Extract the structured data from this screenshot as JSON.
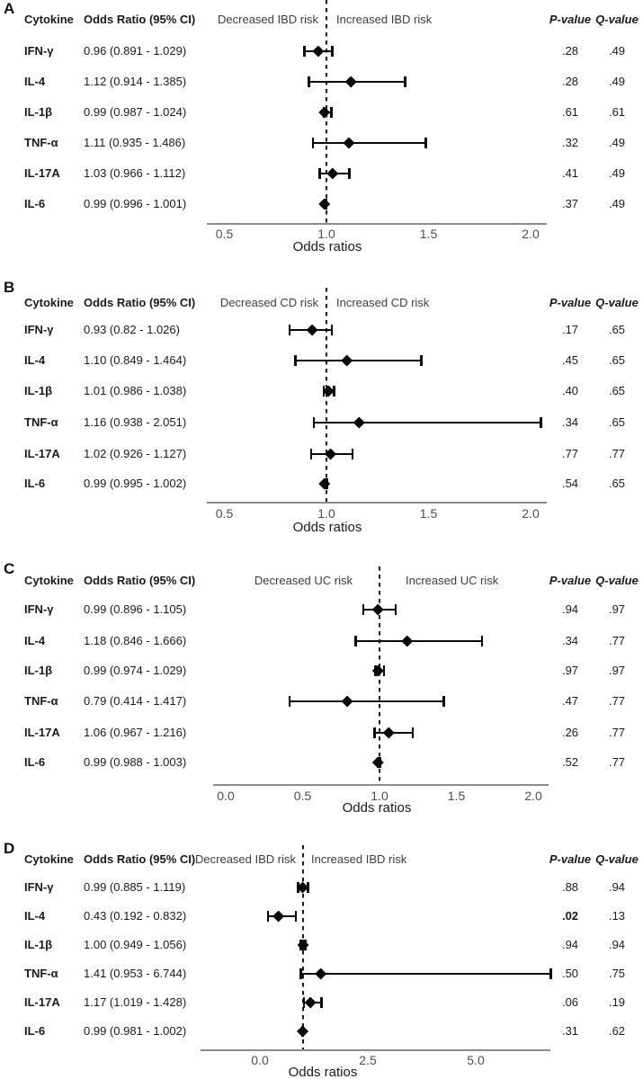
{
  "colors": {
    "text": "#1a1a1a",
    "muted_text": "#4d4d4d",
    "risk_label_text": "#3d3d3d",
    "axis_line": "#8c8c8c",
    "marker": "#0a0a0a",
    "background": "#ffffff"
  },
  "chart_data": [
    {
      "type": "scatter",
      "subtype": "forest-plot",
      "panel_label": "A",
      "col_headers": {
        "cytokine": "Cytokine",
        "or_ci": "Odds Ratio (95% CI)",
        "p": "P-value",
        "q": "Q-value"
      },
      "decreased_label": "Decreased IBD risk",
      "increased_label": "Increased IBD risk",
      "xlabel": "Odds ratios",
      "ref_line": 1.0,
      "xticks": [
        0.5,
        1.0,
        1.5,
        2.0
      ],
      "xtick_labels": [
        "0.5",
        "1.0",
        "1.5",
        "2.0"
      ],
      "xlim": [
        0.42,
        2.08
      ],
      "rows": [
        {
          "cytokine": "IFN-γ",
          "or_ci": "0.96 (0.891 - 1.029)",
          "or": 0.96,
          "lo": 0.891,
          "hi": 1.029,
          "p": ".28",
          "q": ".49",
          "p_bold": false
        },
        {
          "cytokine": "IL-4",
          "or_ci": "1.12 (0.914 - 1.385)",
          "or": 1.12,
          "lo": 0.914,
          "hi": 1.385,
          "p": ".28",
          "q": ".49",
          "p_bold": false
        },
        {
          "cytokine": "IL-1β",
          "or_ci": "0.99 (0.987 - 1.024)",
          "or": 0.99,
          "lo": 0.987,
          "hi": 1.024,
          "p": ".61",
          "q": ".61",
          "p_bold": false
        },
        {
          "cytokine": "TNF-α",
          "or_ci": "1.11 (0.935 - 1.486)",
          "or": 1.11,
          "lo": 0.935,
          "hi": 1.486,
          "p": ".32",
          "q": ".49",
          "p_bold": false
        },
        {
          "cytokine": "IL-17A",
          "or_ci": "1.03 (0.966 - 1.112)",
          "or": 1.03,
          "lo": 0.966,
          "hi": 1.112,
          "p": ".41",
          "q": ".49",
          "p_bold": false
        },
        {
          "cytokine": "IL-6",
          "or_ci": "0.99 (0.996 - 1.001)",
          "or": 0.99,
          "lo": 0.996,
          "hi": 1.001,
          "p": ".37",
          "q": ".49",
          "p_bold": false
        }
      ]
    },
    {
      "type": "scatter",
      "subtype": "forest-plot",
      "panel_label": "B",
      "col_headers": {
        "cytokine": "Cytokine",
        "or_ci": "Odds Ratio (95% CI)",
        "p": "P-value",
        "q": "Q-value"
      },
      "decreased_label": "Decreased CD risk",
      "increased_label": "Increased CD risk",
      "xlabel": "Odds ratios",
      "ref_line": 1.0,
      "xticks": [
        0.5,
        1.0,
        1.5,
        2.0
      ],
      "xtick_labels": [
        "0.5",
        "1.0",
        "1.5",
        "2.0"
      ],
      "xlim": [
        0.42,
        2.08
      ],
      "rows": [
        {
          "cytokine": "IFN-γ",
          "or_ci": "0.93 (0.82 - 1.026)",
          "or": 0.93,
          "lo": 0.82,
          "hi": 1.026,
          "p": ".17",
          "q": ".65",
          "p_bold": false
        },
        {
          "cytokine": "IL-4",
          "or_ci": "1.10 (0.849 - 1.464)",
          "or": 1.1,
          "lo": 0.849,
          "hi": 1.464,
          "p": ".45",
          "q": ".65",
          "p_bold": false
        },
        {
          "cytokine": "IL-1β",
          "or_ci": "1.01 (0.986 - 1.038)",
          "or": 1.01,
          "lo": 0.986,
          "hi": 1.038,
          "p": ".40",
          "q": ".65",
          "p_bold": false
        },
        {
          "cytokine": "TNF-α",
          "or_ci": "1.16 (0.938 - 2.051)",
          "or": 1.16,
          "lo": 0.938,
          "hi": 2.051,
          "p": ".34",
          "q": ".65",
          "p_bold": false
        },
        {
          "cytokine": "IL-17A",
          "or_ci": "1.02 (0.926 - 1.127)",
          "or": 1.02,
          "lo": 0.926,
          "hi": 1.127,
          "p": ".77",
          "q": ".77",
          "p_bold": false
        },
        {
          "cytokine": "IL-6",
          "or_ci": "0.99 (0.995 - 1.002)",
          "or": 0.99,
          "lo": 0.995,
          "hi": 1.002,
          "p": ".54",
          "q": ".65",
          "p_bold": false
        }
      ]
    },
    {
      "type": "scatter",
      "subtype": "forest-plot",
      "panel_label": "C",
      "col_headers": {
        "cytokine": "Cytokine",
        "or_ci": "Odds Ratio (95% CI)",
        "p": "P-value",
        "q": "Q-value"
      },
      "decreased_label": "Decreased UC risk",
      "increased_label": "Increased UC risk",
      "xlabel": "Odds ratios",
      "ref_line": 1.0,
      "xticks": [
        0.0,
        0.5,
        1.0,
        1.5,
        2.0
      ],
      "xtick_labels": [
        "0.0",
        "0.5",
        "1.0",
        "1.5",
        "2.0"
      ],
      "xlim": [
        -0.08,
        2.1
      ],
      "rows": [
        {
          "cytokine": "IFN-γ",
          "or_ci": "0.99 (0.896 - 1.105)",
          "or": 0.99,
          "lo": 0.896,
          "hi": 1.105,
          "p": ".94",
          "q": ".97",
          "p_bold": false
        },
        {
          "cytokine": "IL-4",
          "or_ci": "1.18 (0.846 - 1.666)",
          "or": 1.18,
          "lo": 0.846,
          "hi": 1.666,
          "p": ".34",
          "q": ".77",
          "p_bold": false
        },
        {
          "cytokine": "IL-1β",
          "or_ci": "0.99 (0.974 - 1.029)",
          "or": 0.99,
          "lo": 0.974,
          "hi": 1.029,
          "p": ".97",
          "q": ".97",
          "p_bold": false
        },
        {
          "cytokine": "TNF-α",
          "or_ci": "0.79 (0.414 - 1.417)",
          "or": 0.79,
          "lo": 0.414,
          "hi": 1.417,
          "p": ".47",
          "q": ".77",
          "p_bold": false
        },
        {
          "cytokine": "IL-17A",
          "or_ci": "1.06 (0.967 - 1.216)",
          "or": 1.06,
          "lo": 0.967,
          "hi": 1.216,
          "p": ".26",
          "q": ".77",
          "p_bold": false
        },
        {
          "cytokine": "IL-6",
          "or_ci": "0.99 (0.988 - 1.003)",
          "or": 0.99,
          "lo": 0.988,
          "hi": 1.003,
          "p": ".52",
          "q": ".77",
          "p_bold": false
        }
      ]
    },
    {
      "type": "scatter",
      "subtype": "forest-plot",
      "panel_label": "D",
      "col_headers": {
        "cytokine": "Cytokine",
        "or_ci": "Odds Ratio (95% CI)",
        "p": "P-value",
        "q": "Q-value"
      },
      "decreased_label": "Decreased IBD risk",
      "increased_label": "Increased IBD risk",
      "xlabel": "Odds ratios",
      "ref_line": 1.0,
      "xticks": [
        0.0,
        2.5,
        5.0
      ],
      "xtick_labels": [
        "0.0",
        "2.5",
        "5.0"
      ],
      "xlim": [
        -1.4,
        6.75
      ],
      "rows": [
        {
          "cytokine": "IFN-γ",
          "or_ci": "0.99 (0.885 - 1.119)",
          "or": 0.99,
          "lo": 0.885,
          "hi": 1.119,
          "p": ".88",
          "q": ".94",
          "p_bold": false
        },
        {
          "cytokine": "IL-4",
          "or_ci": "0.43 (0.192 - 0.832)",
          "or": 0.43,
          "lo": 0.192,
          "hi": 0.832,
          "p": ".02",
          "q": ".13",
          "p_bold": true
        },
        {
          "cytokine": "IL-1β",
          "or_ci": "1.00 (0.949 - 1.056)",
          "or": 1.0,
          "lo": 0.949,
          "hi": 1.056,
          "p": ".94",
          "q": ".94",
          "p_bold": false
        },
        {
          "cytokine": "TNF-α",
          "or_ci": "1.41 (0.953 - 6.744)",
          "or": 1.41,
          "lo": 0.953,
          "hi": 6.744,
          "p": ".50",
          "q": ".75",
          "p_bold": false
        },
        {
          "cytokine": "IL-17A",
          "or_ci": "1.17 (1.019 - 1.428)",
          "or": 1.17,
          "lo": 1.019,
          "hi": 1.428,
          "p": ".06",
          "q": ".19",
          "p_bold": false
        },
        {
          "cytokine": "IL-6",
          "or_ci": "0.99 (0.981 - 1.002)",
          "or": 0.99,
          "lo": 0.981,
          "hi": 1.002,
          "p": ".31",
          "q": ".62",
          "p_bold": false
        }
      ]
    }
  ]
}
